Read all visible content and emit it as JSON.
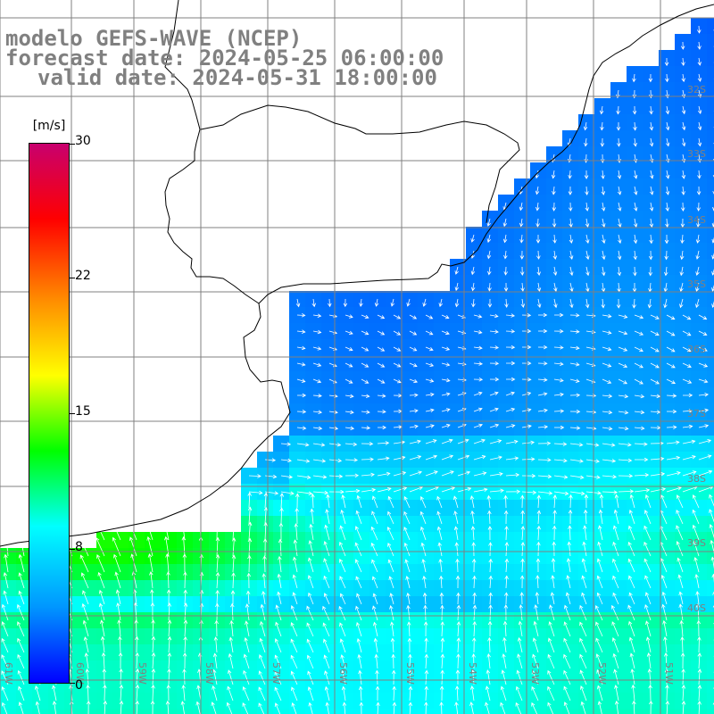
{
  "title": {
    "line1": "modelo GEFS-WAVE (NCEP)",
    "line2": "forecast date: 2024-05-25 06:00:00",
    "line3": "valid date: 2024-05-31 18:00:00"
  },
  "colorbar": {
    "unit": "[m/s]",
    "ticks": [
      "30",
      "22",
      "15",
      "8",
      "0"
    ],
    "tick_values": [
      30,
      22,
      15,
      8,
      0
    ],
    "colors": [
      "#0000ff",
      "#0096ff",
      "#00ffff",
      "#00ff00",
      "#ffff00",
      "#ff8c00",
      "#ff0000",
      "#c8006e"
    ]
  },
  "map": {
    "background": "#ffffff",
    "grid_color": "#808080",
    "coast_color": "#000000",
    "arrow_color": "#ffffff",
    "lon_labels": [
      "61W",
      "60W",
      "59W",
      "58W",
      "57W",
      "56W",
      "55W",
      "54W",
      "53W",
      "52W",
      "51W"
    ],
    "lat_labels": [
      "32S",
      "33S",
      "34S",
      "35S",
      "36S",
      "37S",
      "38S",
      "39S",
      "40S"
    ]
  }
}
